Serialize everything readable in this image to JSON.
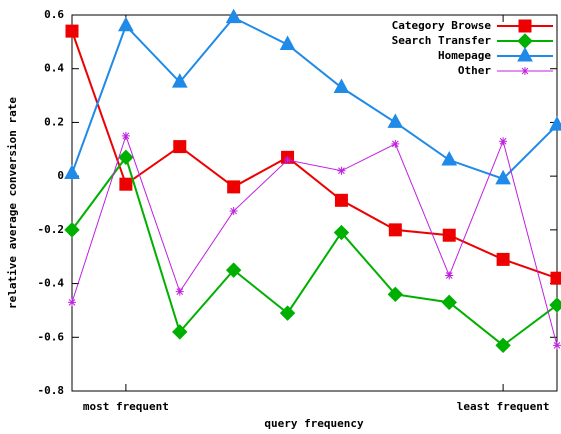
{
  "chart_data": {
    "type": "line",
    "x_label": "query frequency",
    "y_label": "relative average conversion rate",
    "x": [
      1,
      2,
      3,
      4,
      5,
      6,
      7,
      8,
      9,
      10
    ],
    "xlim": [
      1,
      10
    ],
    "xticks": [
      {
        "value": 2,
        "label": "most frequent"
      },
      {
        "value": 9,
        "label": "least frequent"
      }
    ],
    "ylim": [
      -0.8,
      0.6
    ],
    "yticks": [
      -0.8,
      -0.6,
      -0.4,
      -0.2,
      0,
      0.2,
      0.4,
      0.6
    ],
    "legend": "top-right",
    "series": [
      {
        "name": "Category Browse",
        "color": "#ee0000",
        "marker": "square",
        "values": [
          0.54,
          -0.03,
          0.11,
          -0.04,
          0.07,
          -0.09,
          -0.2,
          -0.22,
          -0.31,
          -0.38
        ]
      },
      {
        "name": "Search Transfer",
        "color": "#00b000",
        "marker": "diamond",
        "values": [
          -0.2,
          0.07,
          -0.58,
          -0.35,
          -0.51,
          -0.21,
          -0.44,
          -0.47,
          -0.63,
          -0.48
        ]
      },
      {
        "name": "Homepage",
        "color": "#1f8ae8",
        "marker": "triangle",
        "values": [
          0.01,
          0.56,
          0.35,
          0.59,
          0.49,
          0.33,
          0.2,
          0.06,
          -0.01,
          0.19
        ]
      },
      {
        "name": "Other",
        "color": "#c020e0",
        "marker": "star",
        "values": [
          -0.47,
          0.15,
          -0.43,
          -0.13,
          0.06,
          0.02,
          0.12,
          -0.37,
          0.13,
          -0.63
        ]
      }
    ]
  }
}
